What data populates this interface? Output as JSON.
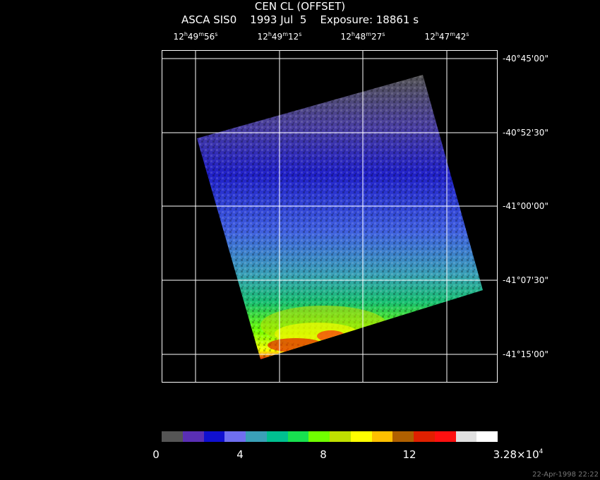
{
  "header": {
    "title": "CEN CL (OFFSET)",
    "subtitle": "ASCA SIS0    1993 Jul  5    Exposure: 18861 s"
  },
  "ra_ticks": [
    {
      "h": "12",
      "m": "49",
      "s": "56"
    },
    {
      "h": "12",
      "m": "49",
      "s": "12"
    },
    {
      "h": "12",
      "m": "48",
      "s": "27"
    },
    {
      "h": "12",
      "m": "47",
      "s": "42"
    }
  ],
  "dec_ticks": [
    "-40°45'00\"",
    "-40°52'30\"",
    "-41°00'00\"",
    "-41°07'30\"",
    "-41°15'00\""
  ],
  "colorbar": {
    "colors": [
      "#555555",
      "#5a2fb5",
      "#1010d0",
      "#6f6ff0",
      "#3aa0b8",
      "#00c090",
      "#18e050",
      "#70ff00",
      "#c0e000",
      "#ffff00",
      "#ffc000",
      "#b06000",
      "#e02000",
      "#ff1010",
      "#e0e0e0",
      "#ffffff"
    ],
    "labels": [
      "0",
      "4",
      "8",
      "12"
    ],
    "max_label_base": "3.28×10",
    "max_label_exp": "4"
  },
  "footer": {
    "timestamp": "22-Apr-1998 22:22"
  },
  "image": {
    "description_colors": {
      "low": "#555555",
      "mid": "#1010d0",
      "high": "#ffff00",
      "peak": "#e02000"
    }
  }
}
